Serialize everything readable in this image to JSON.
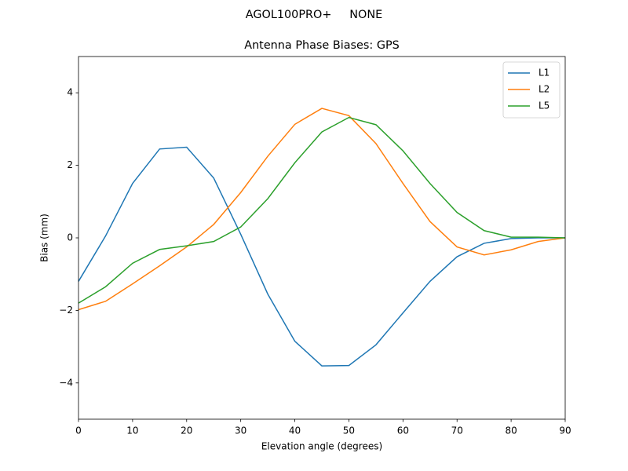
{
  "chart_data": {
    "type": "line",
    "suptitle": "AGOL100PRO+     NONE",
    "title": "Antenna Phase Biases: GPS",
    "x_label": "Elevation angle (degrees)",
    "y_label": "Bias (mm)",
    "x": [
      0,
      5,
      10,
      15,
      20,
      25,
      30,
      35,
      40,
      45,
      50,
      55,
      60,
      65,
      70,
      75,
      80,
      85,
      90
    ],
    "series": [
      {
        "name": "L1",
        "color": "#1f77b4",
        "values": [
          -1.2,
          0.05,
          1.5,
          2.45,
          2.5,
          1.65,
          0.1,
          -1.55,
          -2.85,
          -3.53,
          -3.52,
          -2.95,
          -2.07,
          -1.2,
          -0.52,
          -0.15,
          -0.02,
          0.0,
          0.0
        ]
      },
      {
        "name": "L2",
        "color": "#ff7f0e",
        "values": [
          -1.98,
          -1.75,
          -1.27,
          -0.77,
          -0.25,
          0.37,
          1.25,
          2.25,
          3.13,
          3.57,
          3.37,
          2.6,
          1.5,
          0.45,
          -0.25,
          -0.47,
          -0.33,
          -0.1,
          0.0
        ]
      },
      {
        "name": "L5",
        "color": "#2ca02c",
        "values": [
          -1.8,
          -1.35,
          -0.7,
          -0.32,
          -0.22,
          -0.1,
          0.3,
          1.08,
          2.07,
          2.92,
          3.32,
          3.12,
          2.4,
          1.5,
          0.7,
          0.2,
          0.02,
          0.02,
          0.0
        ]
      }
    ],
    "xlim": [
      0,
      90
    ],
    "xticks": [
      0,
      10,
      20,
      30,
      40,
      50,
      60,
      70,
      80,
      90
    ],
    "ylim": [
      -5,
      5
    ],
    "yticks": [
      {
        "value": -4,
        "label": "−4"
      },
      {
        "value": -2,
        "label": "−2"
      },
      0,
      2,
      4
    ],
    "grid": false,
    "legend": "upper-right"
  }
}
